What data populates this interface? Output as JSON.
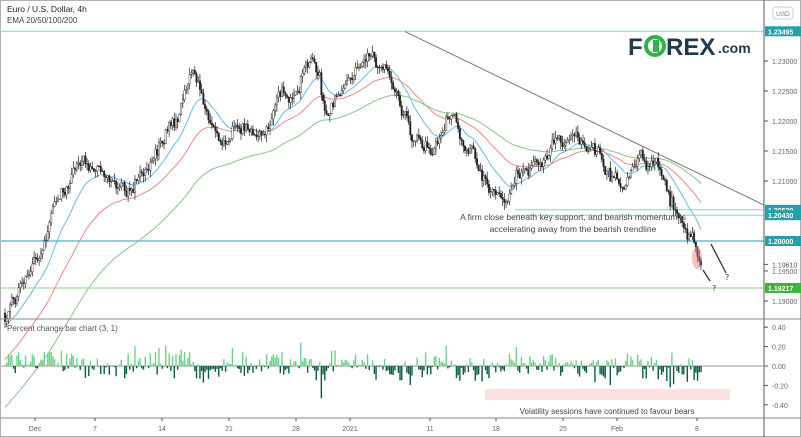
{
  "header": {
    "title": "Euro / U.S. Dollar, 4h",
    "indicators": "EMA 20/50/100/200"
  },
  "currency_button": "USD",
  "logo": {
    "text_left": "F",
    "text_o": "O",
    "text_right": "REX",
    "suffix": ".com"
  },
  "colors": {
    "accent": "#26a0a8",
    "green_level": "#3cb53c",
    "ema20": "#6cb8e8",
    "ema50": "#e88a8a",
    "ema100": "#86c686",
    "bar_up": "#6fd08c",
    "bar_down": "#0e5a46",
    "logo_dark": "#1f3a4a",
    "logo_green": "#2db34a"
  },
  "chart_data": [
    {
      "type": "candlestick",
      "title": "Euro / U.S. Dollar, 4h",
      "ylabel": "USD",
      "ylim": [
        1.185,
        1.2385
      ],
      "y_ticks": [
        "1.23000",
        "1.22500",
        "1.22000",
        "1.21500",
        "1.21000",
        "1.19500",
        "1.19000"
      ],
      "x_ticks": [
        "Dec",
        "7",
        "14",
        "21",
        "28",
        "2021",
        "11",
        "18",
        "25",
        "Feb",
        "8"
      ],
      "price_path": [
        {
          "t": 0,
          "p": 1.188
        },
        {
          "t": 12,
          "p": 1.193
        },
        {
          "t": 22,
          "p": 1.1985
        },
        {
          "t": 28,
          "p": 1.205
        },
        {
          "t": 40,
          "p": 1.213
        },
        {
          "t": 55,
          "p": 1.212
        },
        {
          "t": 70,
          "p": 1.2075
        },
        {
          "t": 85,
          "p": 1.214
        },
        {
          "t": 100,
          "p": 1.22
        },
        {
          "t": 110,
          "p": 1.2265
        },
        {
          "t": 125,
          "p": 1.216
        },
        {
          "t": 140,
          "p": 1.2185
        },
        {
          "t": 152,
          "p": 1.218
        },
        {
          "t": 165,
          "p": 1.225
        },
        {
          "t": 180,
          "p": 1.23
        },
        {
          "t": 188,
          "p": 1.2215
        },
        {
          "t": 200,
          "p": 1.227
        },
        {
          "t": 215,
          "p": 1.233
        },
        {
          "t": 225,
          "p": 1.228
        },
        {
          "t": 238,
          "p": 1.217
        },
        {
          "t": 250,
          "p": 1.215
        },
        {
          "t": 262,
          "p": 1.221
        },
        {
          "t": 275,
          "p": 1.213
        },
        {
          "t": 290,
          "p": 1.2065
        },
        {
          "t": 302,
          "p": 1.211
        },
        {
          "t": 318,
          "p": 1.215
        },
        {
          "t": 335,
          "p": 1.2175
        },
        {
          "t": 350,
          "p": 1.214
        },
        {
          "t": 360,
          "p": 1.209
        },
        {
          "t": 372,
          "p": 1.2145
        },
        {
          "t": 385,
          "p": 1.209
        },
        {
          "t": 395,
          "p": 1.204
        },
        {
          "t": 402,
          "p": 1.1995
        },
        {
          "t": 407,
          "p": 1.196
        }
      ],
      "levels": [
        {
          "label": "1.23495",
          "value": 1.23495,
          "style": "teal"
        },
        {
          "label": "1.20520",
          "value": 1.2052,
          "style": "teal"
        },
        {
          "label": "1.20430",
          "value": 1.2043,
          "style": "teal"
        },
        {
          "label": "1.20000",
          "value": 1.2,
          "style": "teal"
        },
        {
          "label": "1.19217",
          "value": 1.19217,
          "style": "green"
        }
      ],
      "last_price": "1.19610",
      "trendline": {
        "from_price": 1.2349,
        "to_price": 1.206,
        "label": "bearish trendline"
      },
      "series": [
        {
          "name": "EMA 20"
        },
        {
          "name": "EMA 50"
        },
        {
          "name": "EMA 100"
        }
      ],
      "annotations": {
        "main_line1": "A firm close beneath key support, and bearish momentum is",
        "main_line2": "accelerating away from the bearish trendline",
        "question_1": "?",
        "question_2": "?"
      }
    },
    {
      "type": "bar",
      "title": "Percent change bar chart (3, 1)",
      "ylim": [
        -0.5,
        0.5
      ],
      "y_ticks": [
        "0.40",
        "0.20",
        "0.00",
        "-0.20",
        "-0.40"
      ],
      "annotation": "Volatility sessions have continued to favour bears"
    }
  ]
}
